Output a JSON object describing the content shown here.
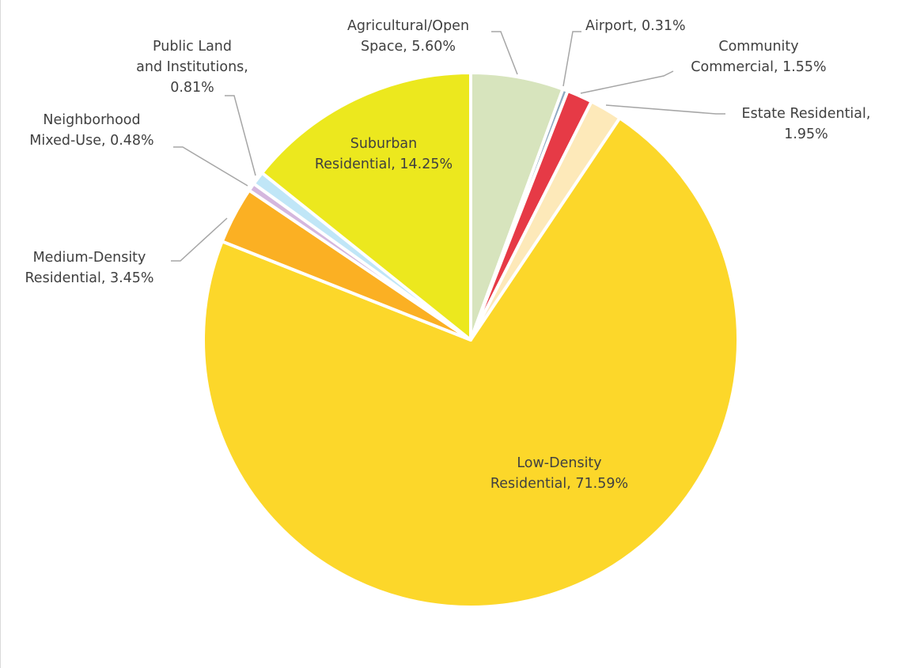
{
  "chart_data": {
    "type": "pie",
    "title": "",
    "start_angle_deg": 0,
    "direction": "clockwise",
    "slices": [
      {
        "name": "Agricultural/Open Space",
        "value": 5.6,
        "label_lines": [
          "Agricultural/Open",
          "Space, 5.60%"
        ],
        "color": "#d7e4bd"
      },
      {
        "name": "Airport",
        "value": 0.31,
        "label_lines": [
          "Airport, 0.31%"
        ],
        "color": "#8ea9c1"
      },
      {
        "name": "Community Commercial",
        "value": 1.55,
        "label_lines": [
          "Community",
          "Commercial, 1.55%"
        ],
        "color": "#e63a46"
      },
      {
        "name": "Estate Residential",
        "value": 1.95,
        "label_lines": [
          "Estate Residential,",
          "1.95%"
        ],
        "color": "#fde9b9"
      },
      {
        "name": "Low-Density Residential",
        "value": 71.59,
        "label_lines": [
          "Low-Density",
          "Residential, 71.59%"
        ],
        "color": "#fcd72a"
      },
      {
        "name": "Medium-Density Residential",
        "value": 3.45,
        "label_lines": [
          "Medium-Density",
          "Residential, 3.45%"
        ],
        "color": "#fbb023"
      },
      {
        "name": "Neighborhood Mixed-Use",
        "value": 0.48,
        "label_lines": [
          "Neighborhood",
          "Mixed-Use, 0.48%"
        ],
        "color": "#d4b7de"
      },
      {
        "name": "Public Land and Institutions",
        "value": 0.81,
        "label_lines": [
          "Public Land",
          "and Institutions,",
          "0.81%"
        ],
        "color": "#c0e6f7"
      },
      {
        "name": "Suburban Residential",
        "value": 14.25,
        "label_lines": [
          "Suburban",
          "Residential, 14.25%"
        ],
        "color": "#ece81e"
      }
    ]
  }
}
